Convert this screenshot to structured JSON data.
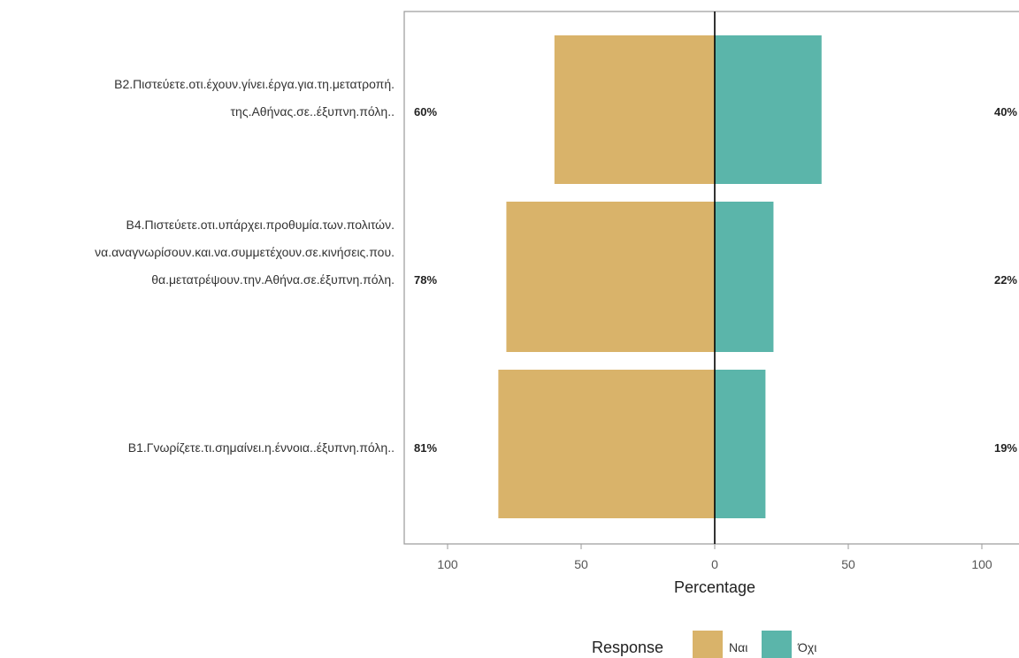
{
  "chart_data": {
    "type": "bar",
    "orientation": "horizontal-diverging",
    "xlabel": "Percentage",
    "xlim": [
      -100,
      100
    ],
    "xticks": [
      {
        "value": -100,
        "label": "100"
      },
      {
        "value": -50,
        "label": "50"
      },
      {
        "value": 0,
        "label": "0"
      },
      {
        "value": 50,
        "label": "50"
      },
      {
        "value": 100,
        "label": "100"
      }
    ],
    "grid": false,
    "categories": [
      {
        "lines": [
          "B2.Πιστεύετε.οτι.έχουν.γίνει.έργα.για.τη.μετατροπή.",
          "της.Αθήνας.σε..έξυπνη.πόλη.."
        ],
        "left_label": "60%",
        "right_label": "40%"
      },
      {
        "lines": [
          "B4.Πιστεύετε.οτι.υπάρχει.προθυμία.των.πολιτών.",
          "να.αναγνωρίσουν.και.να.συμμετέχουν.σε.κινήσεις.που.",
          "θα.μετατρέψουν.την.Αθήνα.σε.έξυπνη.πόλη."
        ],
        "left_label": "78%",
        "right_label": "22%"
      },
      {
        "lines": [
          "B1.Γνωρίζετε.τι.σημαίνει.η.έννοια..έξυπνη.πόλη.."
        ],
        "left_label": "81%",
        "right_label": "19%"
      }
    ],
    "series": [
      {
        "name": "Ναι",
        "color": "#D9B36A",
        "side": "left",
        "values": [
          60,
          78,
          81
        ]
      },
      {
        "name": "Όχι",
        "color": "#5BB5AA",
        "side": "right",
        "values": [
          40,
          22,
          19
        ]
      }
    ],
    "legend": {
      "title": "Response",
      "position": "bottom"
    }
  }
}
